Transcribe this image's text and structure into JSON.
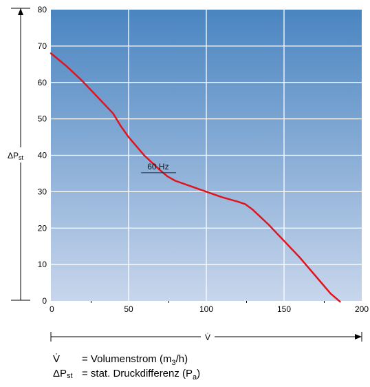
{
  "chart_data": {
    "type": "line",
    "title": "",
    "xlabel": "V̇",
    "ylabel": "ΔPst",
    "xlim": [
      0,
      200
    ],
    "ylim": [
      0,
      80
    ],
    "xticks": [
      "0",
      "50",
      "100",
      "150",
      "200"
    ],
    "yticks": [
      "0",
      "10",
      "20",
      "30",
      "40",
      "50",
      "60",
      "70",
      "80"
    ],
    "grid": true,
    "background": {
      "top": "#4a85c1",
      "bottom": "#c8d6ec"
    },
    "series": [
      {
        "name": "60 Hz",
        "color": "#e0141e",
        "x": [
          0,
          10,
          20,
          30,
          40,
          45,
          50,
          60,
          70,
          75,
          80,
          90,
          100,
          110,
          120,
          125,
          130,
          140,
          150,
          160,
          170,
          180,
          186
        ],
        "y": [
          68,
          64.5,
          60.5,
          56,
          51.5,
          48,
          45,
          40,
          36,
          34.2,
          33,
          31.5,
          30,
          28.5,
          27.3,
          26.6,
          25,
          21,
          16.5,
          12,
          7,
          2,
          -0.2
        ]
      }
    ]
  },
  "legend": {
    "line1": {
      "symbol": "V̇",
      "text": "= Volumenstrom (m",
      "sub": "3",
      "after": "/h)"
    },
    "line2": {
      "symbol": "ΔP",
      "symbol_sub": "st",
      "text": "= stat. Druckdifferenz (P",
      "sub": "a",
      "after": ")"
    }
  }
}
